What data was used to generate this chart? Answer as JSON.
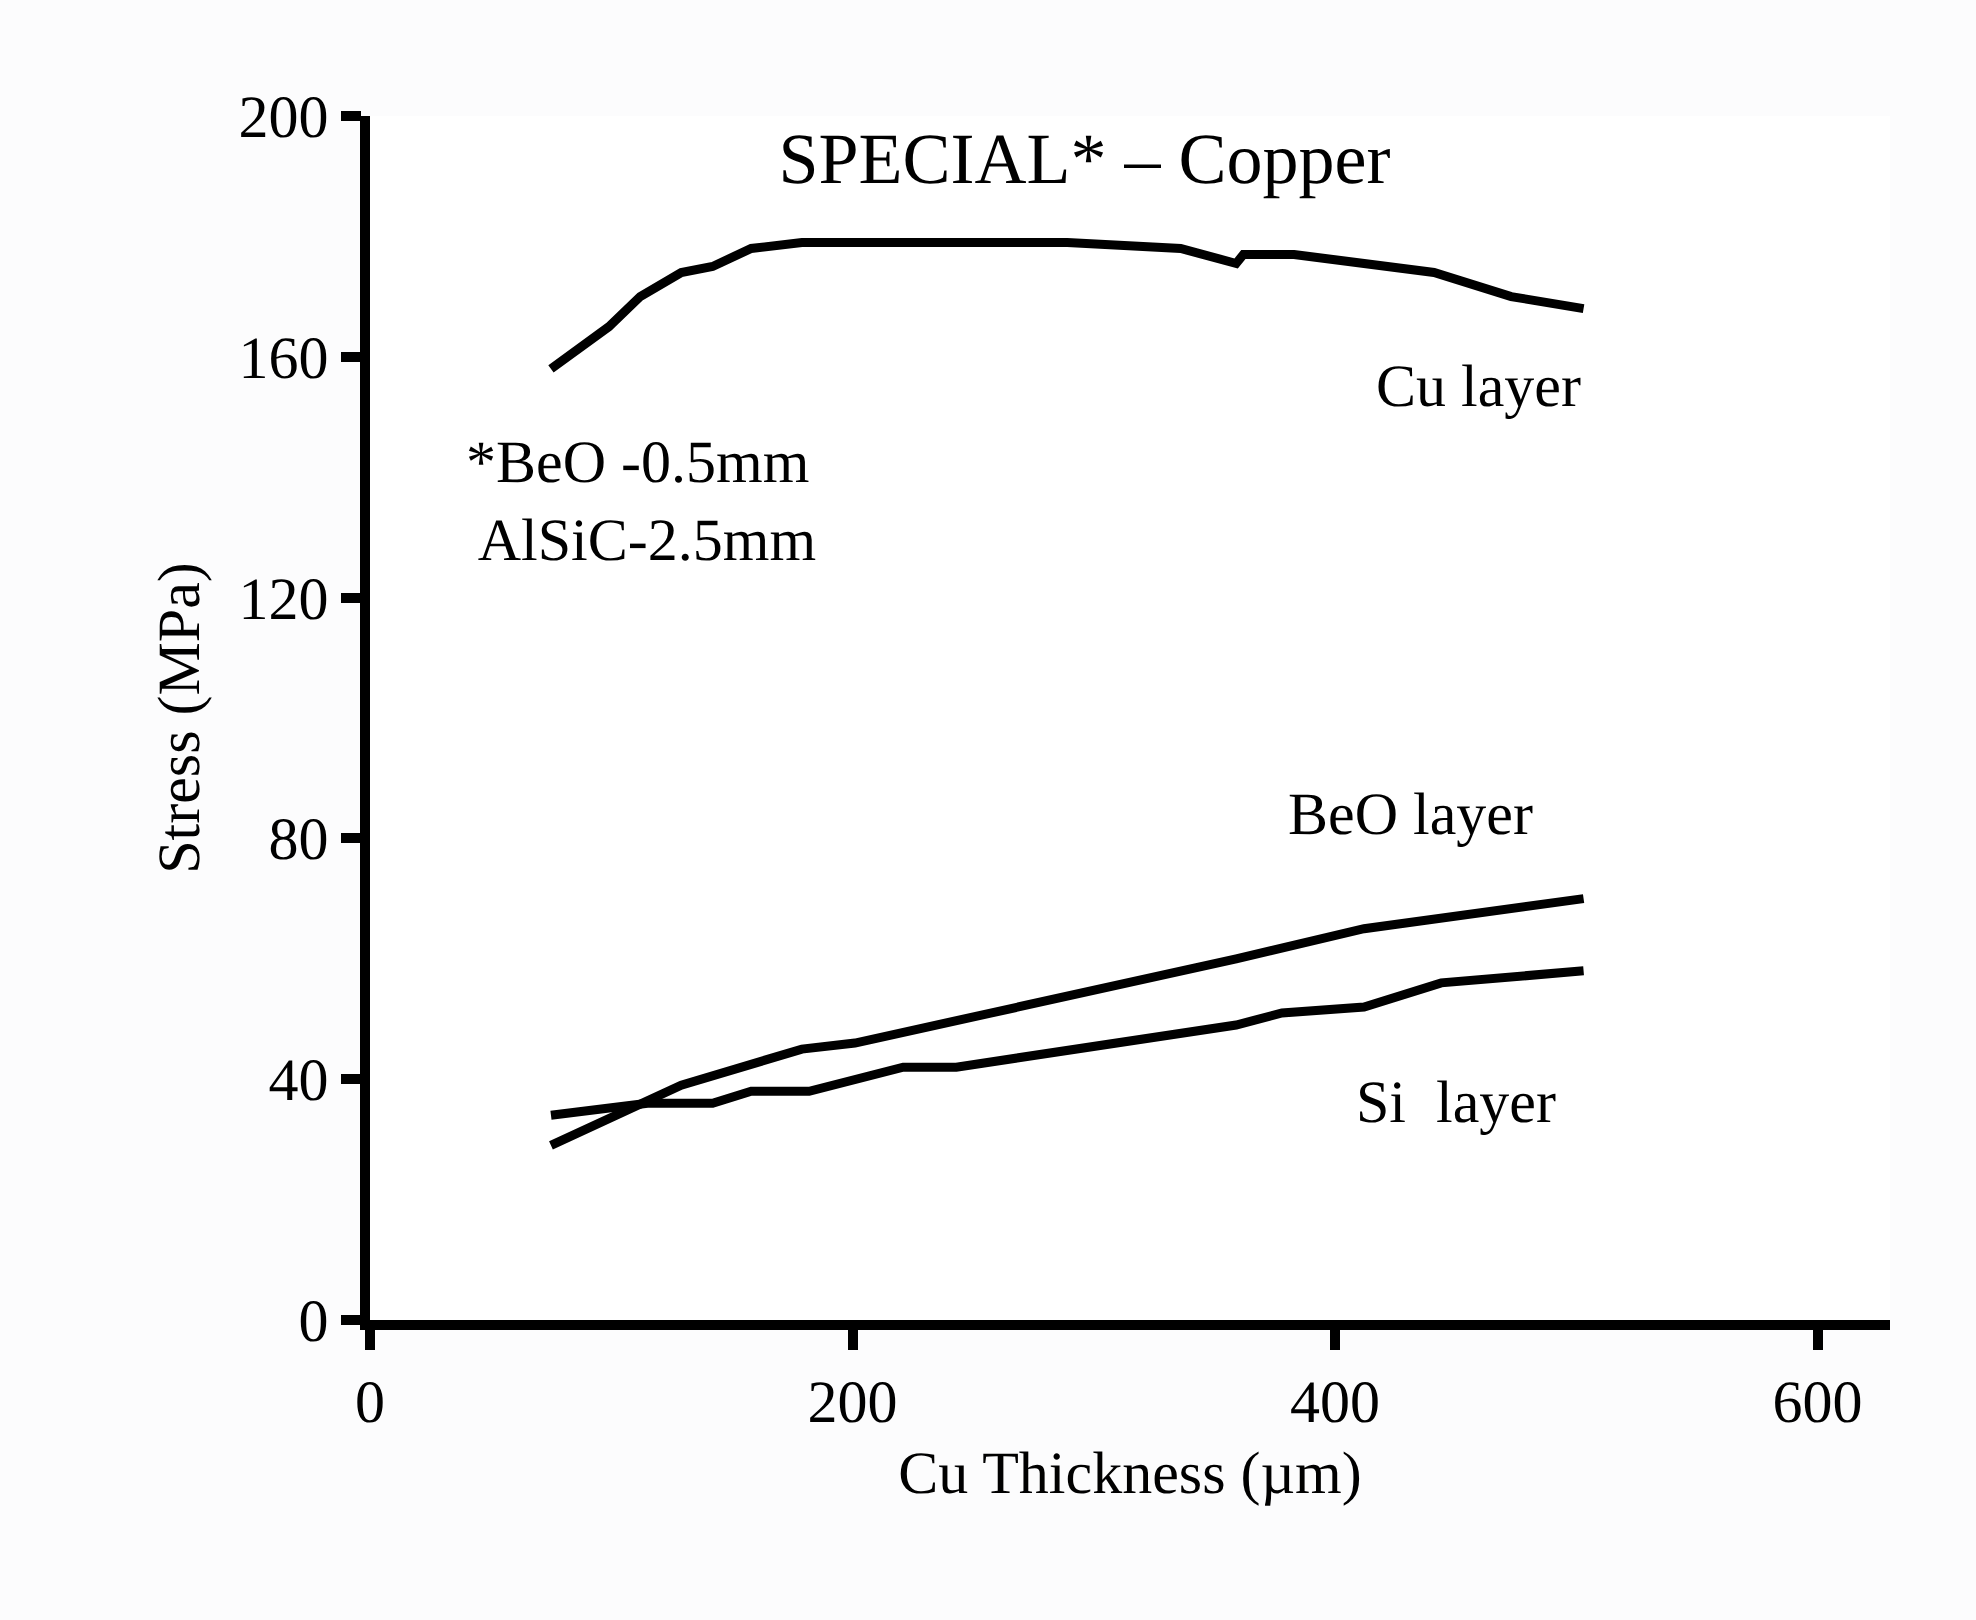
{
  "chart_data": {
    "type": "line",
    "title": "SPECIAL* – Copper",
    "xlabel": "Cu Thickness (µm)",
    "ylabel": "Stress (MPa)",
    "xlim": [
      0,
      630
    ],
    "xticks": [
      0,
      200,
      400,
      600
    ],
    "ylim": [
      0,
      200
    ],
    "yticks": [
      0,
      40,
      80,
      120,
      160,
      200
    ],
    "legend": false,
    "marker": "none",
    "line_style": "solid",
    "series": [
      {
        "name": "Cu layer",
        "color": "#000000",
        "x": [
          75,
          99,
          112,
          129,
          142,
          158,
          179,
          289,
          336,
          359,
          362,
          383,
          441,
          473,
          503
        ],
        "values": [
          158,
          165,
          170,
          174,
          175,
          178,
          179,
          179,
          178,
          175.5,
          177,
          177,
          174,
          170,
          168
        ]
      },
      {
        "name": "BeO layer",
        "color": "#000000",
        "x": [
          75,
          129,
          179,
          201,
          359,
          412,
          503
        ],
        "values": [
          29,
          39,
          45,
          46,
          60,
          65,
          70
        ]
      },
      {
        "name": "Si  layer",
        "color": "#000000",
        "x": [
          75,
          115,
          142,
          158,
          182,
          221,
          243,
          359,
          378,
          412,
          444,
          503
        ],
        "values": [
          34,
          36,
          36,
          38,
          38,
          42,
          42,
          49,
          51,
          52,
          56,
          58
        ]
      }
    ],
    "annotations": [
      "*BeO -0.5mm\n AlSiC-2.5mm"
    ]
  }
}
